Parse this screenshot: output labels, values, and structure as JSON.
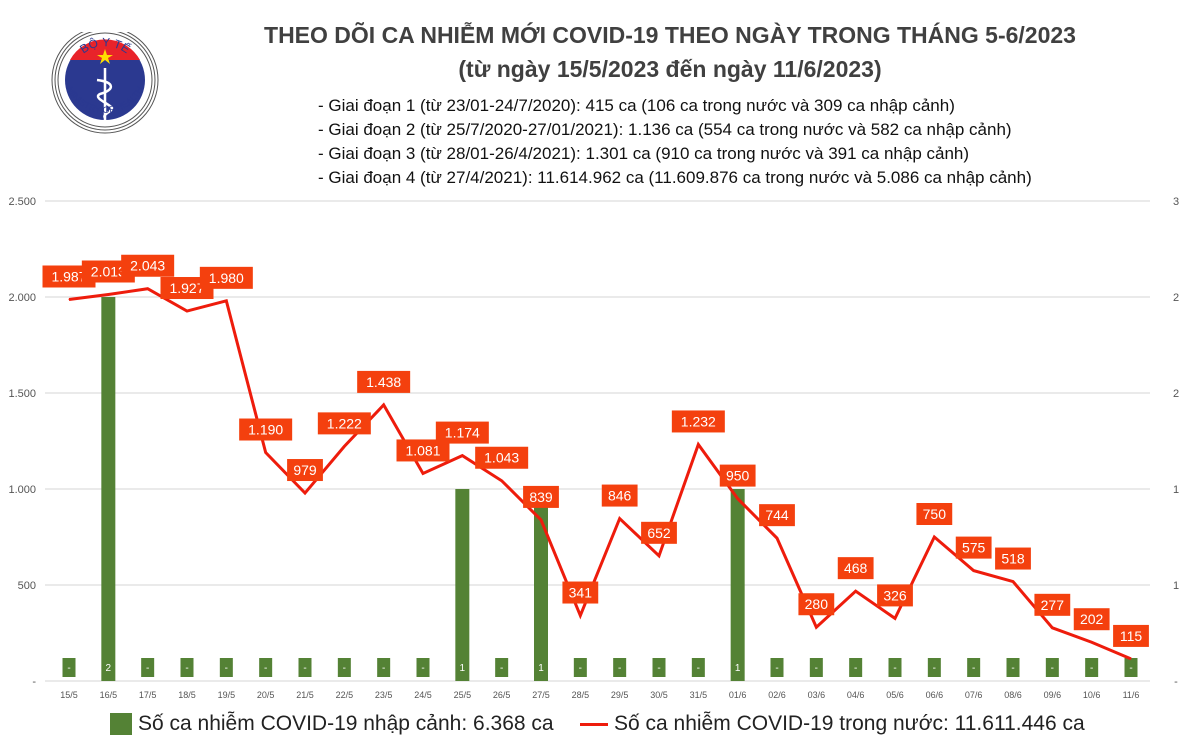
{
  "header": {
    "title": "THEO DÕI CA NHIỄM MỚI COVID-19 THEO NGÀY TRONG THÁNG 5-6/2023",
    "subtitle": "(từ ngày 15/5/2023 đến ngày 11/6/2023)",
    "notes": [
      "- Giai đoạn 1 (từ 23/01-24/7/2020): 415 ca (106 ca trong nước và 309 ca nhập cảnh)",
      "- Giai đoạn 2 (từ 25/7/2020-27/01/2021): 1.136 ca (554 ca trong nước và 582 ca nhập cảnh)",
      "- Giai đoạn 3 (từ 28/01-26/4/2021): 1.301 ca (910 ca trong nước và 391 ca nhập cảnh)",
      "- Giai đoạn 4 (từ 27/4/2021): 11.614.962 ca (11.609.876 ca trong nước và 5.086 ca nhập cảnh)"
    ]
  },
  "logo": {
    "top_text": "BỘ Y TẾ",
    "bottom_text": "MINISTRY OF HEALTH"
  },
  "colors": {
    "bar": "#548235",
    "line": "#ee1c0c",
    "label_bg": "#f4400e",
    "grid": "#e4e4e4"
  },
  "chart_data": {
    "type": "bar+line",
    "categories": [
      "15/5",
      "16/5",
      "17/5",
      "18/5",
      "19/5",
      "20/5",
      "21/5",
      "22/5",
      "23/5",
      "24/5",
      "25/5",
      "26/5",
      "27/5",
      "28/5",
      "29/5",
      "30/5",
      "31/5",
      "01/6",
      "02/6",
      "03/6",
      "04/6",
      "05/6",
      "06/6",
      "07/6",
      "08/6",
      "09/6",
      "10/6",
      "11/6"
    ],
    "series": [
      {
        "name": "Số ca nhiễm COVID-19 nhập cảnh: 6.368 ca",
        "type": "bar",
        "axis": "right",
        "values": [
          0,
          2,
          0,
          0,
          0,
          0,
          0,
          0,
          0,
          0,
          1,
          0,
          1,
          0,
          0,
          0,
          0,
          1,
          0,
          0,
          0,
          0,
          0,
          0,
          0,
          0,
          0,
          0
        ],
        "labels": [
          "-",
          "2",
          "-",
          "-",
          "-",
          "-",
          "-",
          "-",
          "-",
          "-",
          "1",
          "-",
          "1",
          "-",
          "-",
          "-",
          "-",
          "1",
          "-",
          "-",
          "-",
          "-",
          "-",
          "-",
          "-",
          "-",
          "-",
          "-"
        ]
      },
      {
        "name": "Số ca nhiễm COVID-19 trong nước: 11.611.446 ca",
        "type": "line",
        "axis": "left",
        "values": [
          1987,
          2013,
          2043,
          1927,
          1980,
          1190,
          979,
          1222,
          1438,
          1081,
          1174,
          1043,
          839,
          341,
          846,
          652,
          1232,
          950,
          744,
          280,
          468,
          326,
          750,
          575,
          518,
          277,
          202,
          115
        ],
        "labels": [
          "1.987",
          "2.013",
          "2.043",
          "1.927",
          "1.980",
          "1.190",
          "979",
          "1.222",
          "1.438",
          "1.081",
          "1.174",
          "1.043",
          "839",
          "341",
          "846",
          "652",
          "1.232",
          "950",
          "744",
          "280",
          "468",
          "326",
          "750",
          "575",
          "518",
          "277",
          "202",
          "115"
        ]
      }
    ],
    "y_left": {
      "range": [
        0,
        2500
      ],
      "ticks": [
        0,
        500,
        1000,
        1500,
        2000,
        2500
      ],
      "tick_labels": [
        "-",
        "500",
        "1.000",
        "1.500",
        "2.000",
        "2.500"
      ]
    },
    "y_right": {
      "range": [
        0,
        2.5
      ],
      "ticks": [
        0,
        0.5,
        1,
        1.5,
        2,
        2.5
      ],
      "tick_labels": [
        "-",
        "1",
        "1",
        "2",
        "2",
        "3"
      ]
    },
    "grid": true,
    "legend": "bottom"
  }
}
